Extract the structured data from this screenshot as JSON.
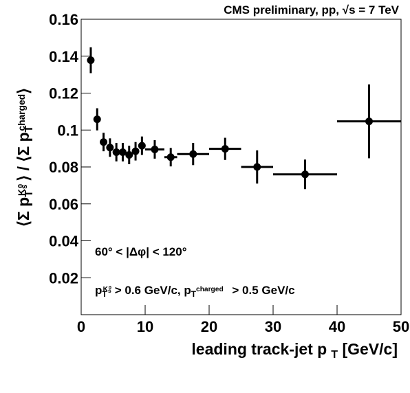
{
  "chart_data": {
    "type": "errorbar",
    "title": "CMS preliminary, pp, √s = 7 TeV",
    "y_label": [
      "⟨Σ p",
      "T",
      "K",
      "s",
      "0",
      "⟩ / ⟨Σ p",
      "T",
      "charged",
      "⟩"
    ],
    "x_label": [
      "leading track-jet p",
      "T",
      " [GeV/c]"
    ],
    "annotations": [
      [
        "60° < |Δφ| < 120°"
      ],
      [
        "p",
        "T",
        "K",
        "s",
        "0",
        " > 0.6 GeV/c, p",
        "T",
        "charged",
        " > 0.5 GeV/c"
      ]
    ],
    "xlim": [
      0,
      50
    ],
    "ylim": [
      0,
      0.16
    ],
    "xticks": [
      0,
      10,
      20,
      30,
      40,
      50
    ],
    "yticks": [
      0.02,
      0.04,
      0.06,
      0.08,
      0.1,
      0.12,
      0.14,
      0.16
    ],
    "series": [
      {
        "color": "#000000",
        "x": [
          1.5,
          2.5,
          3.5,
          4.5,
          5.5,
          6.5,
          7.5,
          8.5,
          9.5,
          11.5,
          14,
          17.5,
          22.5,
          27.5,
          35,
          45
        ],
        "xerr": [
          0.5,
          0.5,
          0.5,
          0.5,
          0.5,
          0.5,
          0.5,
          0.5,
          0.5,
          1.5,
          1,
          2.5,
          2.5,
          2.5,
          5,
          5
        ],
        "values": [
          0.1378,
          0.1058,
          0.0935,
          0.0905,
          0.088,
          0.088,
          0.0865,
          0.0885,
          0.0915,
          0.0895,
          0.0853,
          0.087,
          0.0898,
          0.08,
          0.076,
          0.1047
        ],
        "yerr": [
          0.007,
          0.006,
          0.005,
          0.005,
          0.005,
          0.005,
          0.005,
          0.005,
          0.005,
          0.005,
          0.005,
          0.006,
          0.006,
          0.009,
          0.008,
          0.02
        ]
      }
    ]
  }
}
